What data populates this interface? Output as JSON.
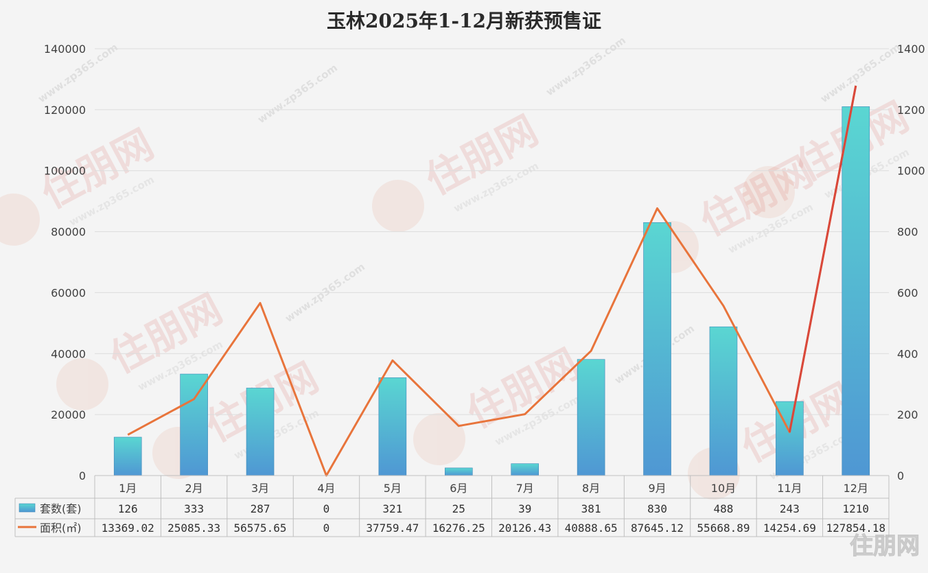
{
  "chart_data": {
    "type": "bar",
    "title": "玉林2025年1-12月新获预售证",
    "categories": [
      "1月",
      "2月",
      "3月",
      "4月",
      "5月",
      "6月",
      "7月",
      "8月",
      "9月",
      "10月",
      "11月",
      "12月"
    ],
    "y_left": {
      "range": [
        0,
        140000
      ],
      "ticks": [
        "0",
        "20000",
        "40000",
        "60000",
        "80000",
        "100000",
        "120000",
        "140000"
      ]
    },
    "y_right": {
      "range": [
        0,
        1400
      ],
      "ticks": [
        "0",
        "200",
        "400",
        "600",
        "800",
        "1000",
        "1200",
        "1400"
      ]
    },
    "grid": true,
    "legend": "table-left",
    "series": [
      {
        "name": "套数(套)",
        "type": "bar",
        "axis": "right",
        "color_top": "#5ad6d2",
        "color_bottom": "#4f97d3",
        "values": [
          126,
          333,
          287,
          0,
          321,
          25,
          39,
          381,
          830,
          488,
          243,
          1210
        ],
        "labels": [
          "126",
          "333",
          "287",
          "0",
          "321",
          "25",
          "39",
          "381",
          "830",
          "488",
          "243",
          "1210"
        ]
      },
      {
        "name": "面积(㎡)",
        "type": "line",
        "axis": "left",
        "color": "#e8743b",
        "values": [
          13369.02,
          25085.33,
          56575.65,
          0,
          37759.47,
          16276.25,
          20126.43,
          40888.65,
          87645.12,
          55668.89,
          14254.69,
          127854.18
        ],
        "labels": [
          "13369.02",
          "25085.33",
          "56575.65",
          "0",
          "37759.47",
          "16276.25",
          "20126.43",
          "40888.65",
          "87645.12",
          "55668.89",
          "14254.69",
          "127854.18"
        ]
      }
    ]
  },
  "watermark": {
    "brand": "住朋网",
    "site": "www.zp365.com"
  }
}
